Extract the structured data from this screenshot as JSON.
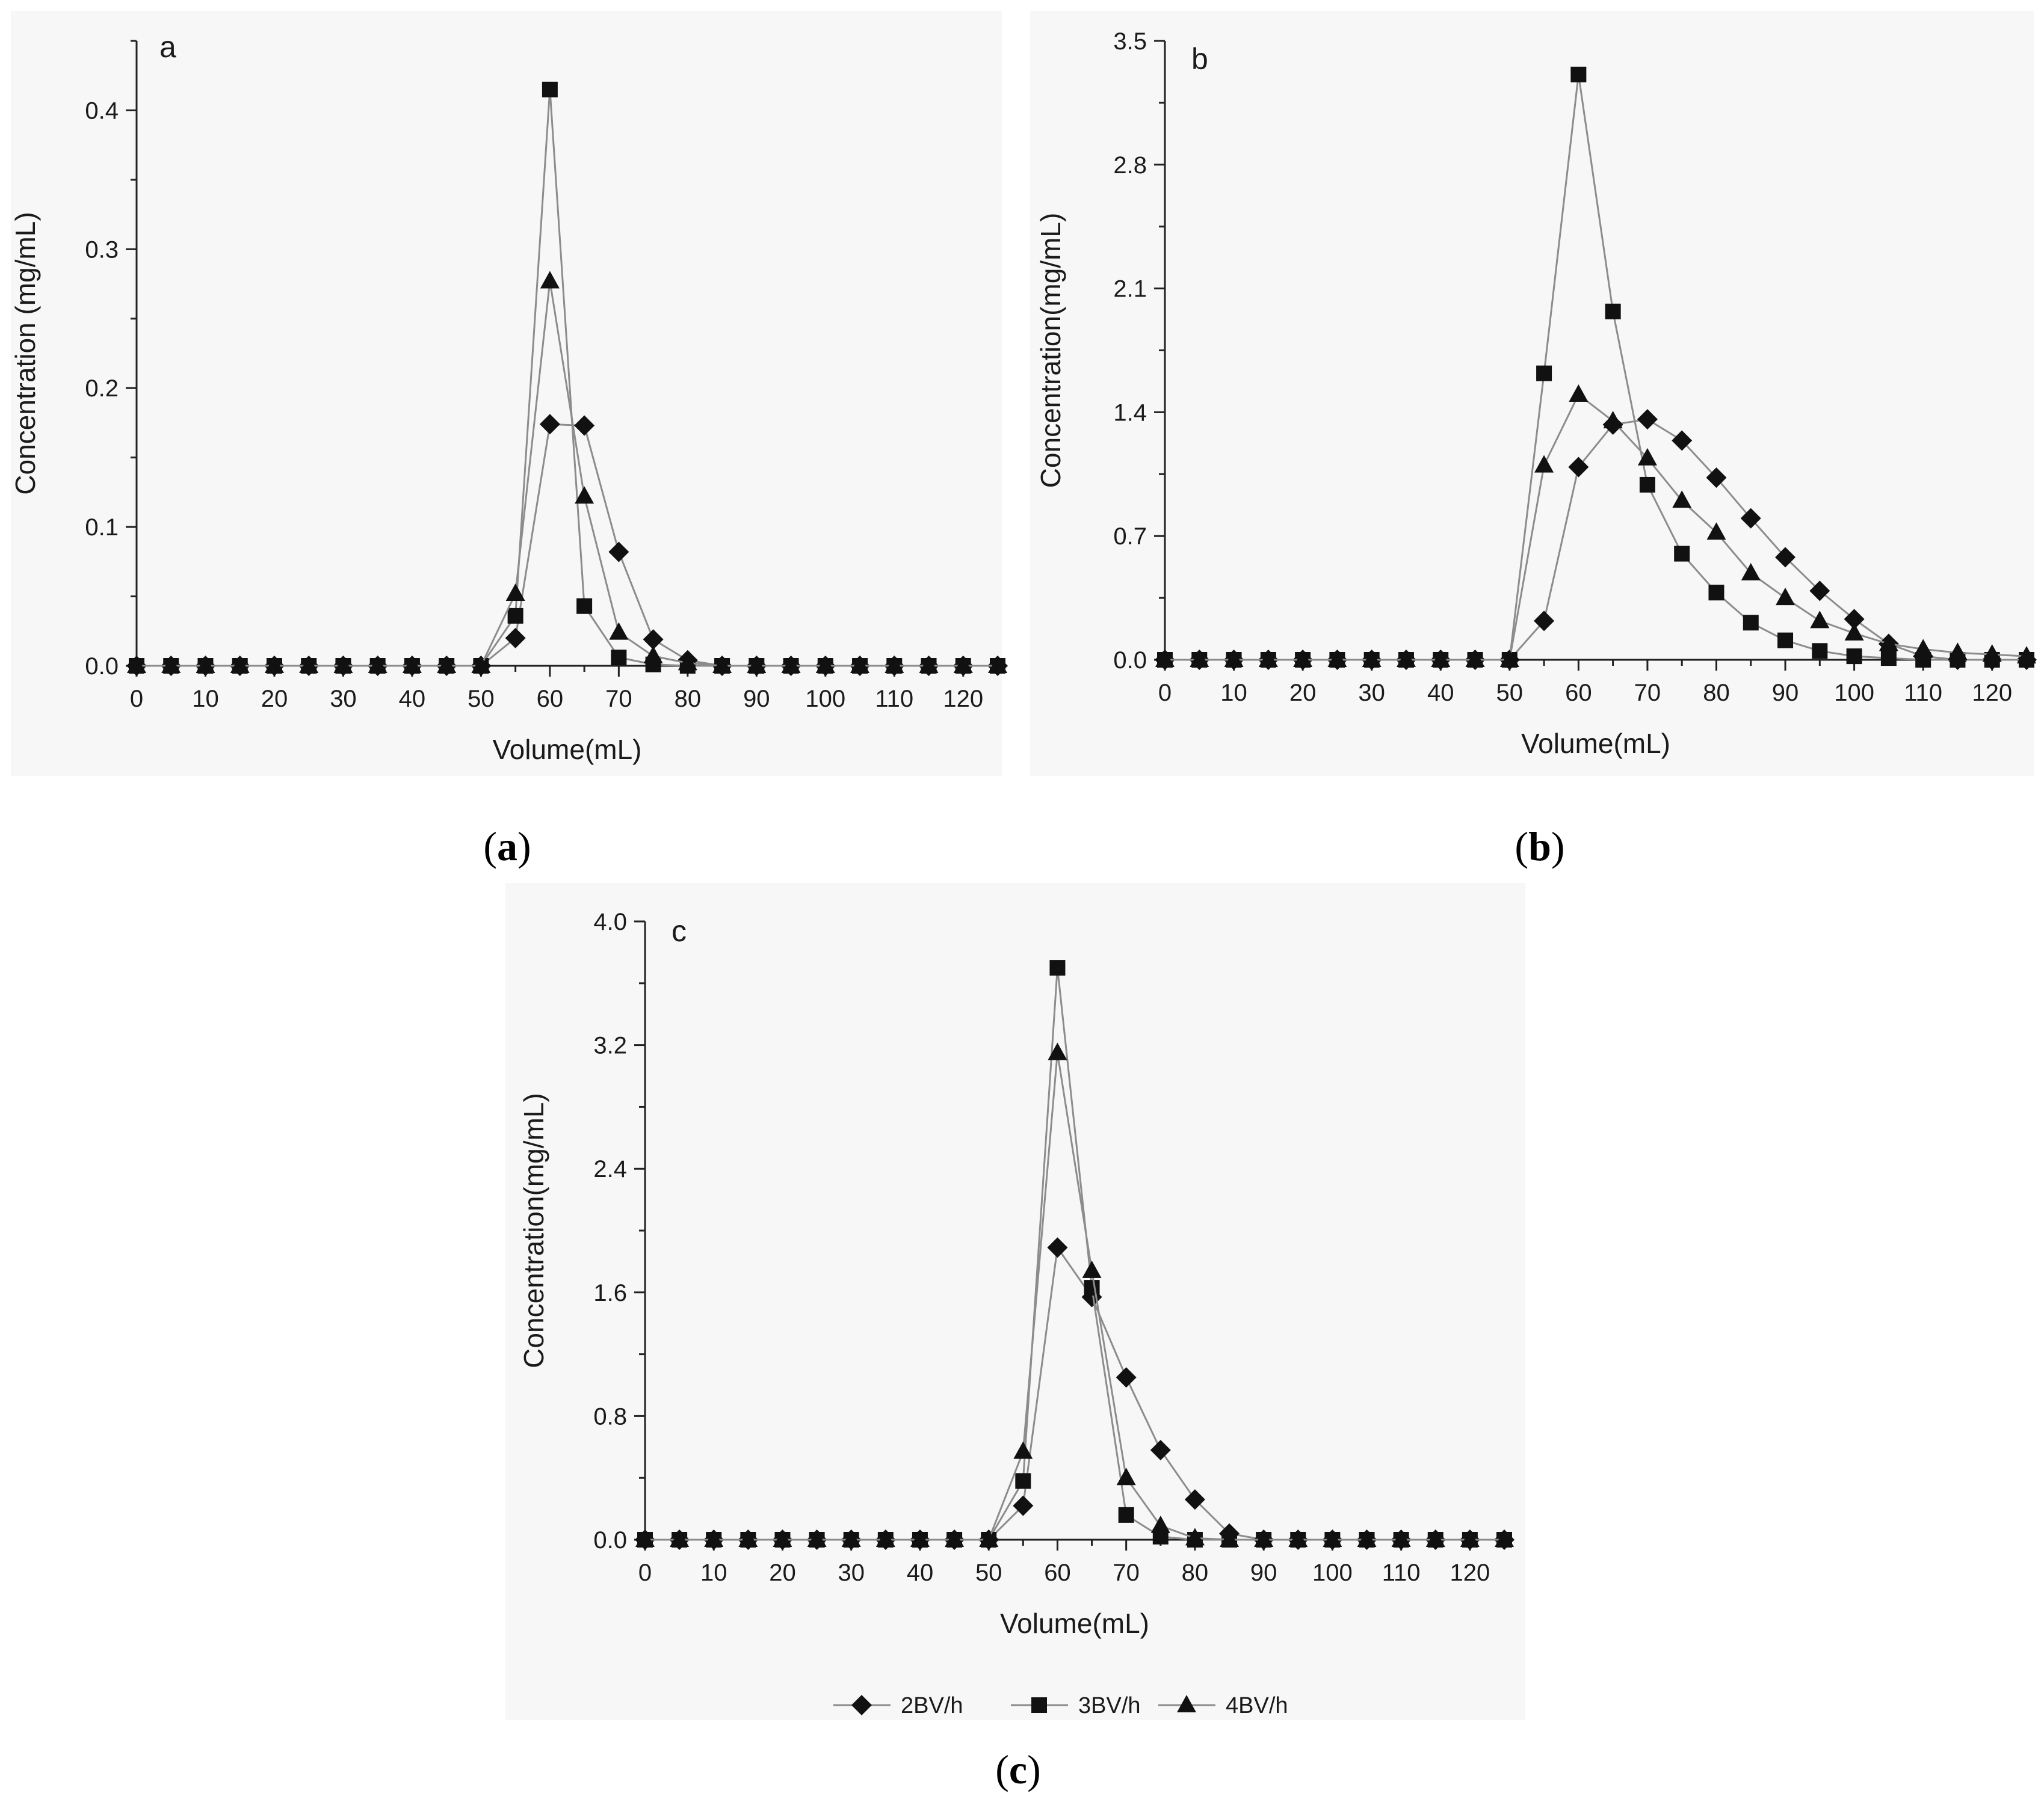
{
  "legend": [
    {
      "label": "2BV/h",
      "marker": "diamond"
    },
    {
      "label": "3BV/h",
      "marker": "square"
    },
    {
      "label": "4BV/h",
      "marker": "triangle"
    }
  ],
  "chart_data": [
    {
      "type": "line",
      "panel_letter": "a",
      "caption": {
        "open": "(",
        "letter": "a",
        "close": ")"
      },
      "xlabel": "Volume(mL)",
      "ylabel": "Concentration (mg/mL)",
      "xlim": [
        0,
        125
      ],
      "ylim": [
        0,
        0.45
      ],
      "xticks": [
        0,
        10,
        20,
        30,
        40,
        50,
        60,
        70,
        80,
        90,
        100,
        110,
        120
      ],
      "xtick_labels": [
        "0",
        "10",
        "20",
        "30",
        "40",
        "50",
        "60",
        "70",
        "80",
        "90",
        "100",
        "110",
        "120"
      ],
      "yticks": [
        0,
        0.1,
        0.2,
        0.3,
        0.4
      ],
      "ytick_labels": [
        "0.0",
        "0.1",
        "0.2",
        "0.3",
        "0.4"
      ],
      "x": [
        0,
        5,
        10,
        15,
        20,
        25,
        30,
        35,
        40,
        45,
        50,
        55,
        60,
        65,
        70,
        75,
        80,
        85,
        90,
        95,
        100,
        105,
        110,
        115,
        120,
        125
      ],
      "series": [
        {
          "marker": "diamond",
          "values": [
            0,
            0,
            0,
            0,
            0,
            0,
            0,
            0,
            0,
            0,
            0,
            0.02,
            0.174,
            0.173,
            0.082,
            0.019,
            0.004,
            0,
            0,
            0,
            0,
            0,
            0,
            0,
            0,
            0
          ]
        },
        {
          "marker": "square",
          "values": [
            0,
            0,
            0,
            0,
            0,
            0,
            0,
            0,
            0,
            0,
            0,
            0.036,
            0.415,
            0.043,
            0.006,
            0.001,
            0,
            0,
            0,
            0,
            0,
            0,
            0,
            0,
            0,
            0
          ]
        },
        {
          "marker": "triangle",
          "values": [
            0,
            0,
            0,
            0,
            0,
            0,
            0,
            0,
            0,
            0,
            0,
            0.052,
            0.277,
            0.122,
            0.024,
            0.007,
            0.002,
            0,
            0,
            0,
            0,
            0,
            0,
            0,
            0,
            0
          ]
        }
      ]
    },
    {
      "type": "line",
      "panel_letter": "b",
      "caption": {
        "open": "(",
        "letter": "b",
        "close": ")"
      },
      "xlabel": "Volume(mL)",
      "ylabel": "Concentration(mg/mL)",
      "xlim": [
        0,
        125
      ],
      "ylim": [
        0,
        3.5
      ],
      "xticks": [
        0,
        10,
        20,
        30,
        40,
        50,
        60,
        70,
        80,
        90,
        100,
        110,
        120
      ],
      "xtick_labels": [
        "0",
        "10",
        "20",
        "30",
        "40",
        "50",
        "60",
        "70",
        "80",
        "90",
        "100",
        "110",
        "120"
      ],
      "yticks": [
        0,
        0.7,
        1.4,
        2.1,
        2.8,
        3.5
      ],
      "ytick_labels": [
        "0.0",
        "0.7",
        "1.4",
        "2.1",
        "2.8",
        "3.5"
      ],
      "x": [
        0,
        5,
        10,
        15,
        20,
        25,
        30,
        35,
        40,
        45,
        50,
        55,
        60,
        65,
        70,
        75,
        80,
        85,
        90,
        95,
        100,
        105,
        110,
        115,
        120,
        125
      ],
      "series": [
        {
          "marker": "diamond",
          "values": [
            0,
            0,
            0,
            0,
            0,
            0,
            0,
            0,
            0,
            0,
            0,
            0.22,
            1.09,
            1.33,
            1.36,
            1.24,
            1.03,
            0.8,
            0.58,
            0.39,
            0.23,
            0.09,
            0.02,
            0,
            0,
            0
          ]
        },
        {
          "marker": "square",
          "values": [
            0,
            0,
            0,
            0,
            0,
            0,
            0,
            0,
            0,
            0,
            0,
            1.62,
            3.31,
            1.97,
            0.99,
            0.6,
            0.38,
            0.21,
            0.11,
            0.05,
            0.02,
            0.01,
            0,
            0,
            0,
            0
          ]
        },
        {
          "marker": "triangle",
          "values": [
            0,
            0,
            0,
            0,
            0,
            0,
            0,
            0,
            0,
            0,
            0,
            1.1,
            1.5,
            1.35,
            1.14,
            0.9,
            0.72,
            0.49,
            0.35,
            0.22,
            0.15,
            0.09,
            0.06,
            0.04,
            0.03,
            0.02
          ]
        }
      ]
    },
    {
      "type": "line",
      "panel_letter": "c",
      "caption": {
        "open": "(",
        "letter": "c",
        "close": ")"
      },
      "xlabel": "Volume(mL)",
      "ylabel": "Concentration(mg/mL)",
      "xlim": [
        0,
        125
      ],
      "ylim": [
        0,
        4.0
      ],
      "xticks": [
        0,
        10,
        20,
        30,
        40,
        50,
        60,
        70,
        80,
        90,
        100,
        110,
        120
      ],
      "xtick_labels": [
        "0",
        "10",
        "20",
        "30",
        "40",
        "50",
        "60",
        "70",
        "80",
        "90",
        "100",
        "110",
        "120"
      ],
      "yticks": [
        0,
        0.8,
        1.6,
        2.4,
        3.2,
        4.0
      ],
      "ytick_labels": [
        "0.0",
        "0.8",
        "1.6",
        "2.4",
        "3.2",
        "4.0"
      ],
      "x": [
        0,
        5,
        10,
        15,
        20,
        25,
        30,
        35,
        40,
        45,
        50,
        55,
        60,
        65,
        70,
        75,
        80,
        85,
        90,
        95,
        100,
        105,
        110,
        115,
        120,
        125
      ],
      "series": [
        {
          "marker": "diamond",
          "values": [
            0,
            0,
            0,
            0,
            0,
            0,
            0,
            0,
            0,
            0,
            0,
            0.22,
            1.89,
            1.57,
            1.05,
            0.58,
            0.26,
            0.04,
            0,
            0,
            0,
            0,
            0,
            0,
            0,
            0
          ]
        },
        {
          "marker": "square",
          "values": [
            0,
            0,
            0,
            0,
            0,
            0,
            0,
            0,
            0,
            0,
            0,
            0.38,
            3.7,
            1.63,
            0.16,
            0.02,
            0,
            0,
            0,
            0,
            0,
            0,
            0,
            0,
            0,
            0
          ]
        },
        {
          "marker": "triangle",
          "values": [
            0,
            0,
            0,
            0,
            0,
            0,
            0,
            0,
            0,
            0,
            0,
            0.57,
            3.15,
            1.74,
            0.4,
            0.09,
            0.01,
            0,
            0,
            0,
            0,
            0,
            0,
            0,
            0,
            0
          ]
        }
      ]
    }
  ]
}
